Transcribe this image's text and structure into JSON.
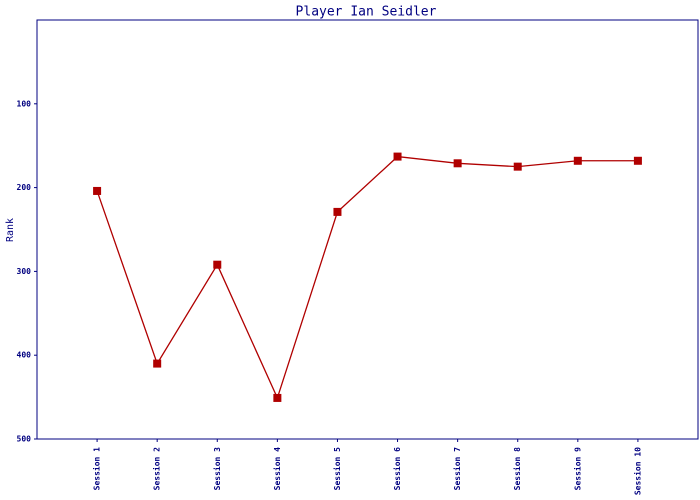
{
  "chart_data": {
    "type": "line",
    "title": "Player Ian Seidler",
    "y_label": "Rank",
    "categories": [
      "Session 1",
      "Session 2",
      "Session 3",
      "Session 4",
      "Session 5",
      "Session 6",
      "Session 7",
      "Session 8",
      "Session 9",
      "Session 10"
    ],
    "series": [
      {
        "color": "#b00000",
        "values": [
          204,
          410,
          292,
          451,
          229,
          163,
          171,
          175,
          168,
          168
        ]
      }
    ],
    "ylim": [
      0,
      500
    ],
    "y_inverted": true,
    "yticks": [
      100,
      200,
      300,
      400,
      500
    ],
    "grid": false
  }
}
